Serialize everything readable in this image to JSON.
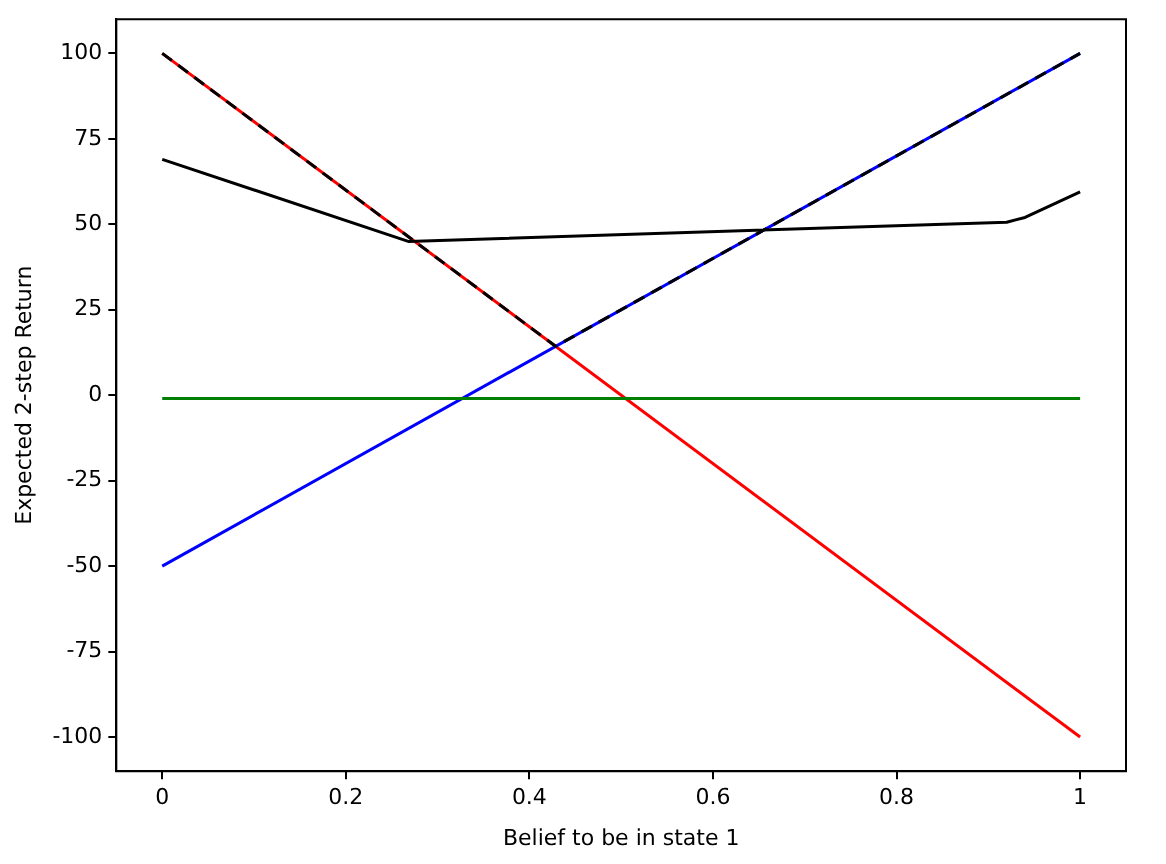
{
  "chart_data": {
    "type": "line",
    "xlabel": "Belief to be in state 1",
    "ylabel": "Expected 2-step Return",
    "xlim": [
      -0.05,
      1.05
    ],
    "ylim": [
      -110,
      110
    ],
    "xticks": [
      0,
      0.2,
      0.4,
      0.6,
      0.8,
      1
    ],
    "yticks": [
      -100,
      -75,
      -50,
      -25,
      0,
      25,
      50,
      75,
      100
    ],
    "grid": false,
    "legend": false,
    "marker": "none",
    "series": [
      {
        "color": "#ff0000",
        "x": [
          0,
          1
        ],
        "values": [
          100,
          -100
        ]
      },
      {
        "color": "#0000ff",
        "x": [
          0,
          1
        ],
        "values": [
          -50,
          100
        ]
      },
      {
        "color": "#008000",
        "x": [
          0,
          1
        ],
        "values": [
          -1,
          -1
        ]
      },
      {
        "color": "#000000",
        "line_style": "dashed",
        "x": [
          0,
          0.4286,
          1
        ],
        "values": [
          100,
          14.3,
          100
        ]
      },
      {
        "color": "#000000",
        "x": [
          0,
          0.268,
          0.92,
          0.94,
          1
        ],
        "values": [
          69,
          45,
          50.6,
          52,
          59.5
        ]
      }
    ]
  }
}
